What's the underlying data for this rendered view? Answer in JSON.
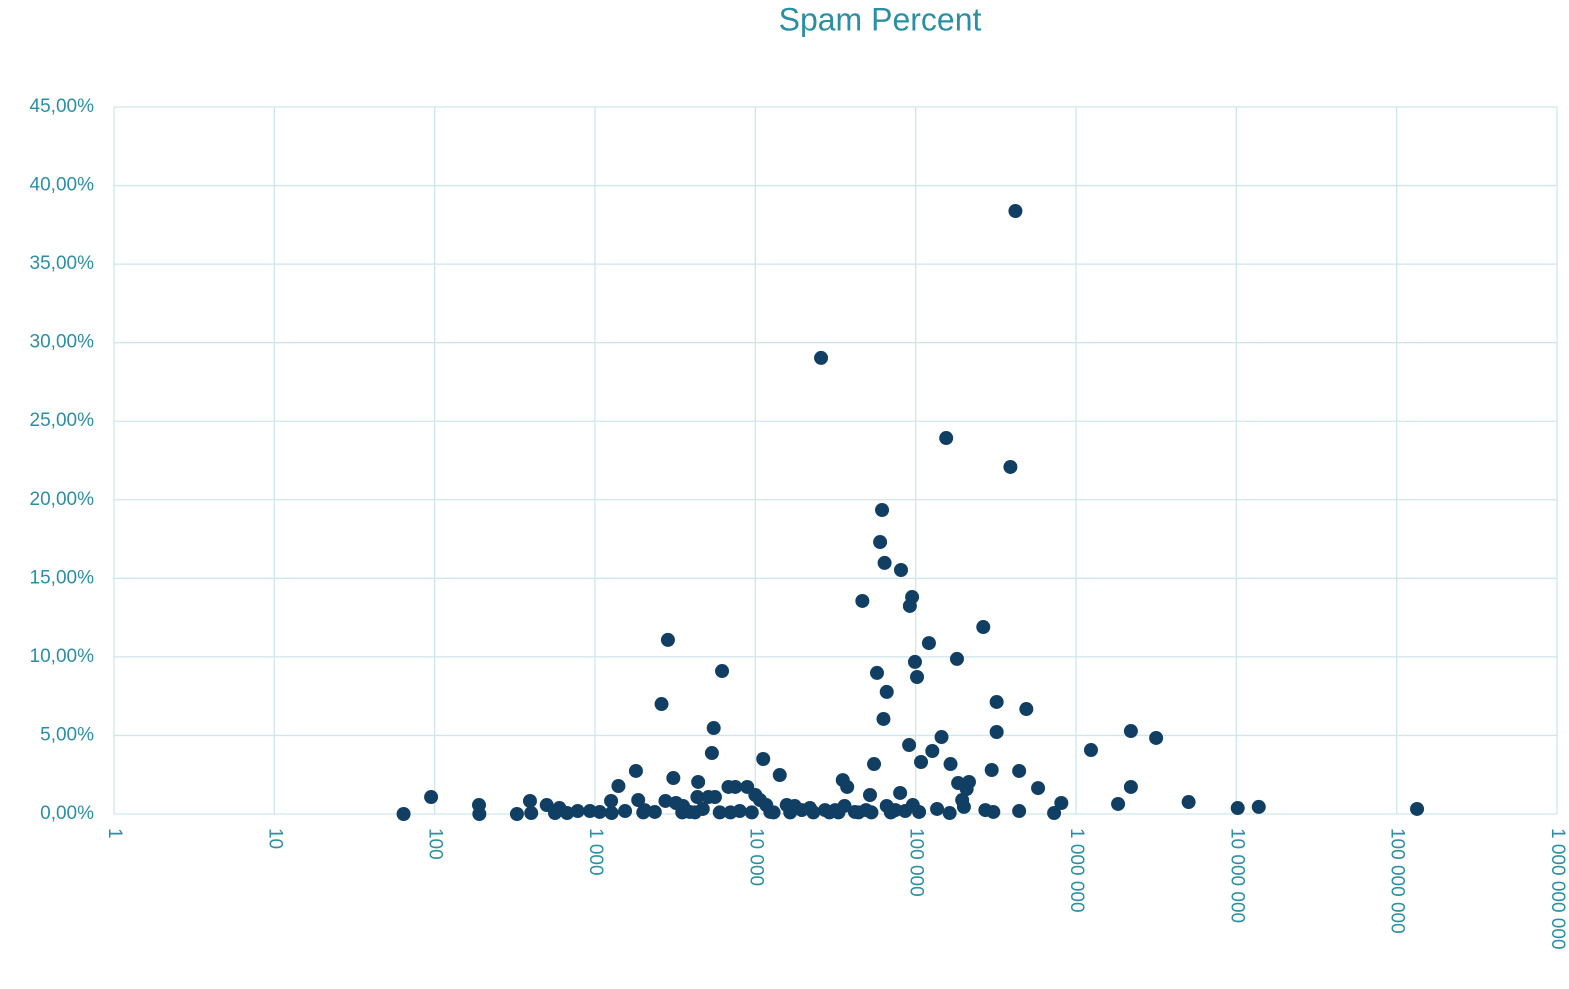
{
  "chart_data": {
    "type": "scatter",
    "title": "Spam Percent",
    "color": "#113f64",
    "xscale": "log",
    "grid": true,
    "x": [
      64,
      95,
      189,
      190,
      326,
      393,
      400,
      500,
      563,
      600,
      670,
      780,
      930,
      1070,
      1260,
      1270,
      1400,
      1540,
      1800,
      1860,
      2040,
      2360,
      2600,
      2850,
      2750,
      3080,
      3200,
      3540,
      3900,
      4350,
      4400,
      4700,
      5100,
      5360,
      5500,
      5600,
      6200,
      6800,
      7500,
      8900,
      8000,
      10000,
      10700,
      11200,
      11700,
      12400,
      14200,
      15700,
      17600,
      19500,
      21900,
      25700,
      27200,
      31500,
      35100,
      37400,
      36000,
      41800,
      46500,
      49000,
      51900,
      55000,
      57400,
      60000,
      61700,
      63000,
      64000,
      66000,
      66000,
      74800,
      80000,
      81000,
      86000,
      91000,
      92000,
      95000,
      96000,
      99000,
      102000,
      105000,
      108000,
      121000,
      127000,
      136000,
      145000,
      155000,
      163000,
      165000,
      181000,
      184000,
      195000,
      200000,
      208000,
      215000,
      264000,
      272000,
      298000,
      305000,
      320000,
      320000,
      390000,
      419000,
      442000,
      442000,
      490000,
      580000,
      730000,
      810000,
      1240000,
      1830000,
      2200000,
      2200000,
      3160000,
      5040000,
      10200000,
      13800000,
      134000000,
      2000,
      3500,
      4200,
      6000,
      7000,
      9500,
      13000,
      16500,
      23000,
      29000,
      33000,
      44000,
      53000,
      70000
    ],
    "values": [
      0,
      1.08,
      0.57,
      0,
      0,
      0.83,
      0.06,
      0.57,
      0.06,
      0.38,
      0.06,
      0.19,
      0.19,
      0.13,
      0.83,
      0.06,
      1.78,
      0.19,
      2.74,
      0.89,
      0.25,
      0.13,
      7.0,
      11.08,
      0.83,
      2.29,
      0.7,
      0.51,
      0.13,
      1.08,
      2.04,
      0.32,
      1.08,
      3.88,
      5.47,
      1.08,
      9.1,
      1.72,
      1.72,
      1.72,
      0.19,
      1.21,
      0.89,
      3.5,
      0.57,
      0.13,
      2.48,
      0.57,
      0.51,
      0.25,
      0.38,
      29.03,
      0.25,
      0.25,
      2.16,
      1.72,
      0.51,
      0.13,
      13.56,
      0.25,
      1.21,
      3.18,
      8.98,
      17.31,
      19.35,
      6.05,
      15.98,
      7.77,
      0.51,
      0.25,
      1.34,
      15.53,
      0.19,
      4.39,
      13.24,
      13.81,
      0.57,
      9.68,
      8.72,
      0.13,
      3.31,
      10.88,
      4.01,
      0.32,
      4.9,
      23.93,
      0.06,
      3.18,
      9.87,
      1.97,
      0.89,
      0.45,
      1.59,
      2.04,
      11.9,
      0.25,
      2.8,
      0.13,
      7.13,
      5.22,
      22.09,
      38.38,
      2.74,
      0.19,
      6.68,
      1.65,
      0.06,
      0.7,
      4.07,
      0.64,
      5.28,
      1.72,
      4.84,
      0.76,
      0.38,
      0.45,
      0.32,
      0.1,
      0.1,
      0.1,
      0.1,
      0.1,
      0.1,
      0.1,
      0.1,
      0.1,
      0.1,
      0.1,
      0.1,
      0.1,
      0.1
    ],
    "xlim": [
      1,
      1000000000
    ],
    "xticks": [
      1,
      10,
      100,
      {
        "value": 1000,
        "label": "1 000"
      },
      {
        "value": 10000,
        "label": "10 000"
      },
      {
        "value": 100000,
        "label": "100 000"
      },
      {
        "value": 1000000,
        "label": "1 000 000"
      },
      {
        "value": 10000000,
        "label": "10 000 000"
      },
      {
        "value": 100000000,
        "label": "100 000 000"
      },
      {
        "value": 1000000000,
        "label": "1 000 000 000"
      }
    ],
    "ylim": [
      0,
      45
    ],
    "yticks": [
      {
        "value": 0,
        "label": "0,00%"
      },
      {
        "value": 5,
        "label": "5,00%"
      },
      {
        "value": 10,
        "label": "10,00%"
      },
      {
        "value": 15,
        "label": "15,00%"
      },
      {
        "value": 20,
        "label": "20,00%"
      },
      {
        "value": 25,
        "label": "25,00%"
      },
      {
        "value": 30,
        "label": "30,00%"
      },
      {
        "value": 35,
        "label": "35,00%"
      },
      {
        "value": 40,
        "label": "40,00%"
      },
      {
        "value": 45,
        "label": "45,00%"
      }
    ]
  }
}
